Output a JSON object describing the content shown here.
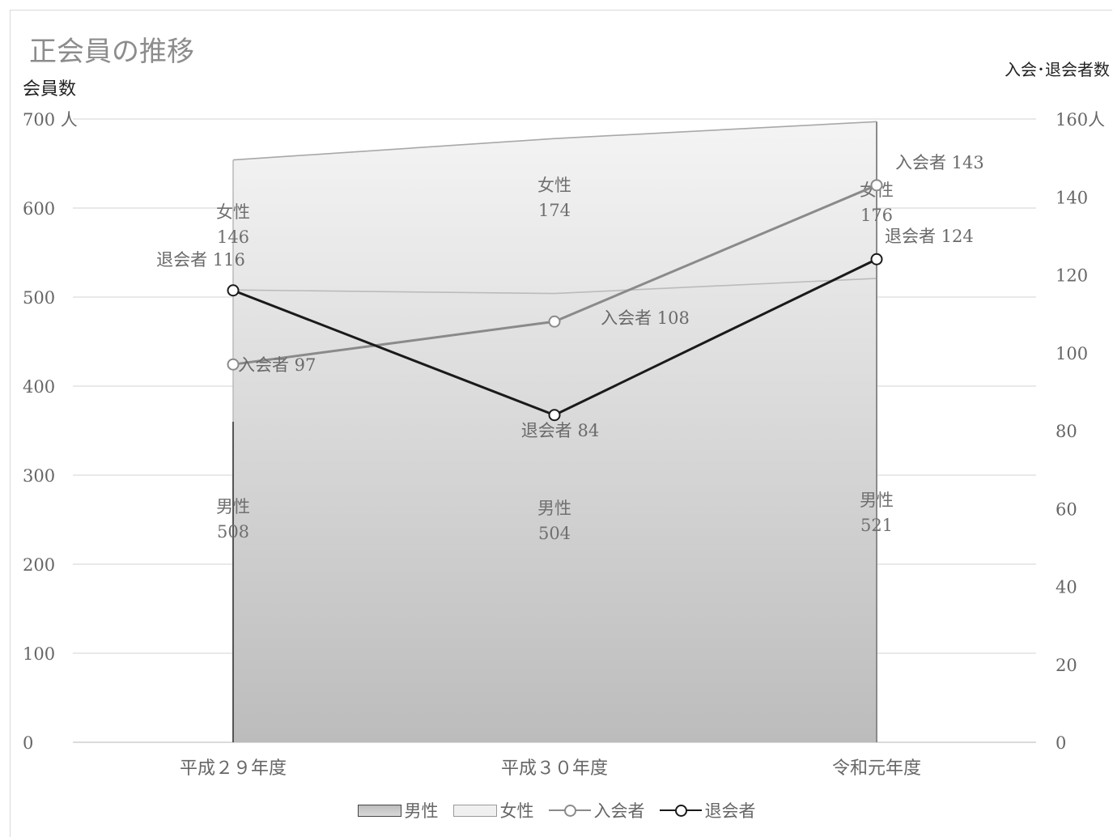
{
  "chart_data": {
    "type": "bar",
    "title": "正会員の推移",
    "ylabel": "会員数",
    "y2label": "入会･退会者数",
    "ylim": [
      0,
      700
    ],
    "yticks": [
      0,
      100,
      200,
      300,
      400,
      500,
      600,
      700
    ],
    "ytick_labels": [
      "0",
      "100",
      "200",
      "300",
      "400",
      "500",
      "600",
      "700 人"
    ],
    "y2lim": [
      0,
      160
    ],
    "y2ticks": [
      0,
      20,
      40,
      60,
      80,
      100,
      120,
      140,
      160
    ],
    "y2tick_labels": [
      "0",
      "20",
      "40",
      "60",
      "80",
      "100",
      "120",
      "140",
      "160人"
    ],
    "categories": [
      "平成２９年度",
      "平成３０年度",
      "令和元年度"
    ],
    "grid": true,
    "legend_position": "bottom",
    "series": [
      {
        "name": "男性",
        "kind": "stacked-area",
        "axis": "left",
        "values": [
          508,
          504,
          521
        ],
        "data_labels": [
          "男性\n508",
          "男性\n504",
          "男性\n521"
        ],
        "color": "#c8c8c8"
      },
      {
        "name": "女性",
        "kind": "stacked-area",
        "axis": "left",
        "values": [
          146,
          174,
          176
        ],
        "data_labels": [
          "女性\n146",
          "女性\n174",
          "女性\n176"
        ],
        "color": "#f0f0f0"
      },
      {
        "name": "入会者",
        "kind": "line",
        "axis": "right",
        "values": [
          97,
          108,
          143
        ],
        "data_labels": [
          "入会者 97",
          "入会者 108",
          "入会者 143"
        ],
        "color": "#8a8a8a"
      },
      {
        "name": "退会者",
        "kind": "line",
        "axis": "right",
        "values": [
          116,
          84,
          124
        ],
        "data_labels": [
          "退会者 116",
          "退会者 84",
          "退会者 124"
        ],
        "color": "#1a1a1a"
      }
    ]
  }
}
